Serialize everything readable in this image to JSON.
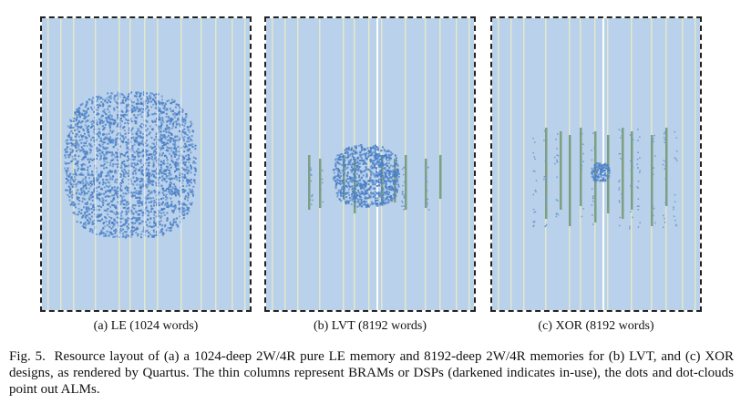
{
  "figure": {
    "number_label": "Fig. 5.",
    "caption": "Resource layout of (a) a 1024-deep 2W/4R pure LE memory and 8192-deep 2W/4R memories for (b) LVT, and (c) XOR designs, as rendered by Quartus. The thin columns represent BRAMs or DSPs (darkened indicates in-use), the dots and dot-clouds point out ALMs."
  },
  "panels": [
    {
      "id": "a",
      "caption": "(a) LE (1024 words)",
      "design": "LE",
      "depth_words": 1024
    },
    {
      "id": "b",
      "caption": "(b) LVT (8192 words)",
      "design": "LVT",
      "depth_words": 8192
    },
    {
      "id": "c",
      "caption": "(c) XOR (8192 words)",
      "design": "XOR",
      "depth_words": 8192
    }
  ],
  "colors": {
    "background": "#b9d1ea",
    "column_unused": "#e4e8c8",
    "column_used": "#7f9f7e",
    "alm_cloud": "#4a7fc6",
    "alm_dot": "#6f9bd3",
    "frame": "#222222"
  }
}
